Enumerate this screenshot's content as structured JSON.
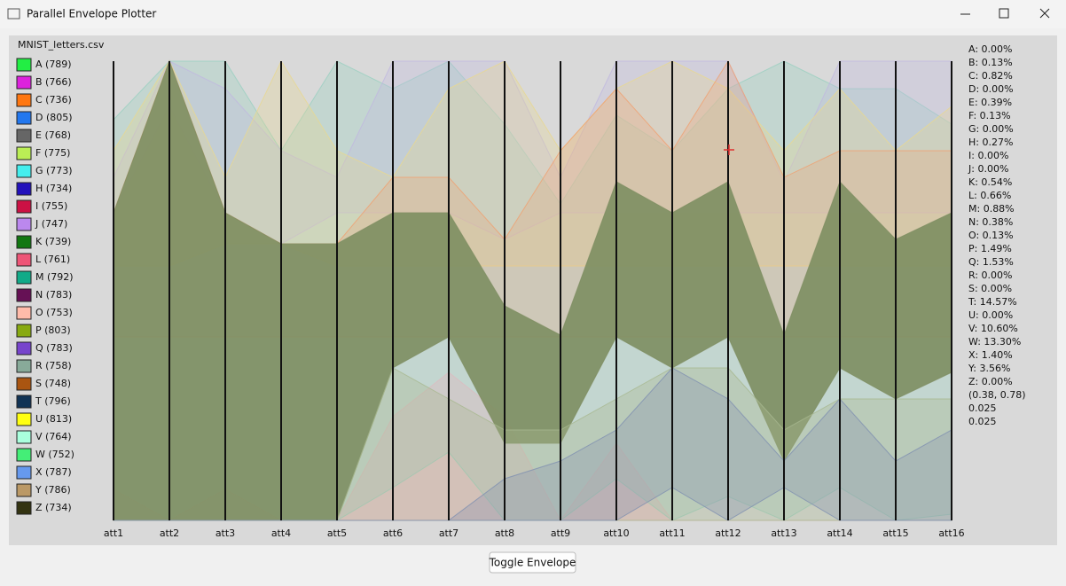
{
  "window": {
    "title": "Parallel Envelope Plotter"
  },
  "plot": {
    "file": "MNIST_letters.csv",
    "legend": [
      {
        "label": "A (789)",
        "color": "#22ee44"
      },
      {
        "label": "B (766)",
        "color": "#dd22dd"
      },
      {
        "label": "C (736)",
        "color": "#ff7711"
      },
      {
        "label": "D (805)",
        "color": "#2277ee"
      },
      {
        "label": "E (768)",
        "color": "#666666"
      },
      {
        "label": "F (775)",
        "color": "#bbee55"
      },
      {
        "label": "G (773)",
        "color": "#44eeee"
      },
      {
        "label": "H (734)",
        "color": "#2211bb"
      },
      {
        "label": "I (755)",
        "color": "#cc1144"
      },
      {
        "label": "J (747)",
        "color": "#bb88ee"
      },
      {
        "label": "K (739)",
        "color": "#117711"
      },
      {
        "label": "L (761)",
        "color": "#ee5577"
      },
      {
        "label": "M (792)",
        "color": "#11aa88"
      },
      {
        "label": "N (783)",
        "color": "#661155"
      },
      {
        "label": "O (753)",
        "color": "#ffbbaa"
      },
      {
        "label": "P (803)",
        "color": "#88aa11"
      },
      {
        "label": "Q (783)",
        "color": "#7744cc"
      },
      {
        "label": "R (758)",
        "color": "#88aa99"
      },
      {
        "label": "S (748)",
        "color": "#aa5511"
      },
      {
        "label": "T (796)",
        "color": "#113355"
      },
      {
        "label": "U (813)",
        "color": "#ffff11"
      },
      {
        "label": "V (764)",
        "color": "#aaffdd"
      },
      {
        "label": "W (752)",
        "color": "#44ee77"
      },
      {
        "label": "X (787)",
        "color": "#6699ee"
      },
      {
        "label": "Y (786)",
        "color": "#bb9966"
      },
      {
        "label": "Z (734)",
        "color": "#333311"
      }
    ],
    "axes": [
      "att1",
      "att2",
      "att3",
      "att4",
      "att5",
      "att6",
      "att7",
      "att8",
      "att9",
      "att10",
      "att11",
      "att12",
      "att13",
      "att14",
      "att15",
      "att16"
    ],
    "stats": [
      "A: 0.00%",
      "B: 0.13%",
      "C: 0.82%",
      "D: 0.00%",
      "E: 0.39%",
      "F: 0.13%",
      "G: 0.00%",
      "H: 0.27%",
      "I: 0.00%",
      "J: 0.00%",
      "K: 0.54%",
      "L: 0.66%",
      "M: 0.88%",
      "N: 0.38%",
      "O: 0.13%",
      "P: 1.49%",
      "Q: 1.53%",
      "R: 0.00%",
      "S: 0.00%",
      "T: 14.57%",
      "U: 0.00%",
      "V: 10.60%",
      "W: 13.30%",
      "X: 1.40%",
      "Y: 3.56%",
      "Z: 0.00%",
      "(0.38, 0.78)",
      "0.025",
      "0.025"
    ]
  },
  "button": "Toggle Envelope"
}
